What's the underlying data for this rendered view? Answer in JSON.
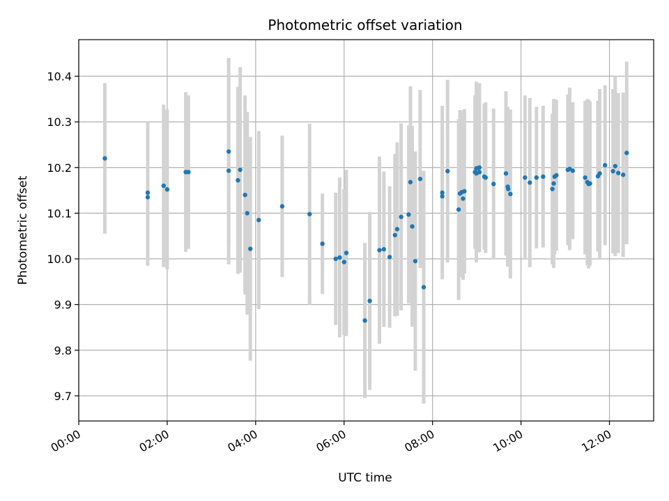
{
  "chart_data": {
    "type": "scatter",
    "title": "Photometric offset variation",
    "xlabel": "UTC time",
    "ylabel": "Photometric offset",
    "x_unit": "hours",
    "xlim": [
      0,
      13
    ],
    "ylim": [
      9.645,
      10.48
    ],
    "grid": true,
    "x_ticks": [
      {
        "value": 0,
        "label": "00:00"
      },
      {
        "value": 2,
        "label": "02:00"
      },
      {
        "value": 4,
        "label": "04:00"
      },
      {
        "value": 6,
        "label": "06:00"
      },
      {
        "value": 8,
        "label": "08:00"
      },
      {
        "value": 10,
        "label": "10:00"
      },
      {
        "value": 12,
        "label": "12:00"
      }
    ],
    "y_ticks": [
      {
        "value": 9.7,
        "label": "9.7"
      },
      {
        "value": 9.8,
        "label": "9.8"
      },
      {
        "value": 9.9,
        "label": "9.9"
      },
      {
        "value": 10.0,
        "label": "10.0"
      },
      {
        "value": 10.1,
        "label": "10.1"
      },
      {
        "value": 10.2,
        "label": "10.2"
      },
      {
        "value": 10.3,
        "label": "10.3"
      },
      {
        "value": 10.4,
        "label": "10.4"
      }
    ],
    "point_color": "#1f77b4",
    "errorbar_color": "#d3d3d3",
    "series": [
      {
        "x": [
          0.59,
          1.56,
          1.56,
          1.92,
          2.0,
          2.42,
          2.48,
          3.39,
          3.39,
          3.6,
          3.65,
          3.76,
          3.81,
          3.88,
          4.07,
          4.6,
          5.22,
          5.51,
          5.81,
          5.9,
          6.0,
          6.05,
          6.47,
          6.58,
          6.8,
          6.9,
          7.03,
          7.15,
          7.2,
          7.29,
          7.46,
          7.5,
          7.54,
          7.61,
          7.72,
          7.8,
          8.22,
          8.22,
          8.34,
          8.59,
          8.62,
          8.66,
          8.69,
          8.72,
          8.96,
          8.99,
          8.99,
          9.03,
          9.06,
          9.06,
          9.17,
          9.2,
          9.38,
          9.66,
          9.7,
          9.71,
          9.76,
          10.09,
          10.2,
          10.35,
          10.5,
          10.71,
          10.74,
          10.76,
          10.8,
          11.06,
          11.1,
          11.17,
          11.45,
          11.5,
          11.53,
          11.56,
          11.74,
          11.78,
          11.9,
          12.08,
          12.13,
          12.2,
          12.31,
          12.39
        ],
        "y": [
          10.22,
          10.145,
          10.135,
          10.16,
          10.152,
          10.19,
          10.19,
          10.235,
          10.193,
          10.172,
          10.195,
          10.14,
          10.1,
          10.022,
          10.085,
          10.115,
          10.098,
          10.033,
          10.0,
          10.003,
          9.993,
          10.013,
          9.865,
          9.908,
          10.019,
          10.021,
          10.004,
          10.052,
          10.065,
          10.092,
          10.097,
          10.168,
          10.071,
          9.995,
          10.175,
          9.938,
          10.145,
          10.137,
          10.192,
          10.108,
          10.143,
          10.146,
          10.132,
          10.148,
          10.19,
          10.198,
          10.187,
          10.199,
          10.19,
          10.2,
          10.18,
          10.178,
          10.164,
          10.187,
          10.158,
          10.153,
          10.142,
          10.178,
          10.167,
          10.178,
          10.18,
          10.153,
          10.165,
          10.18,
          10.183,
          10.195,
          10.197,
          10.193,
          10.178,
          10.168,
          10.164,
          10.165,
          10.181,
          10.187,
          10.205,
          10.192,
          10.203,
          10.188,
          10.184,
          10.232
        ],
        "yerr": [
          0.165,
          0.155,
          0.15,
          0.178,
          0.175,
          0.175,
          0.168,
          0.205,
          0.205,
          0.205,
          0.225,
          0.218,
          0.222,
          0.245,
          0.195,
          0.155,
          0.198,
          0.11,
          0.145,
          0.175,
          0.16,
          0.182,
          0.17,
          0.195,
          0.205,
          0.17,
          0.155,
          0.178,
          0.19,
          0.205,
          0.195,
          0.21,
          0.22,
          0.24,
          0.195,
          0.255,
          0.19,
          0.148,
          0.2,
          0.198,
          0.183,
          0.178,
          0.178,
          0.18,
          0.168,
          0.19,
          0.195,
          0.185,
          0.17,
          0.185,
          0.16,
          0.165,
          0.165,
          0.18,
          0.175,
          0.165,
          0.185,
          0.18,
          0.185,
          0.155,
          0.155,
          0.165,
          0.185,
          0.17,
          0.165,
          0.165,
          0.178,
          0.15,
          0.168,
          0.182,
          0.185,
          0.18,
          0.165,
          0.185,
          0.175,
          0.18,
          0.197,
          0.175,
          0.18,
          0.2
        ]
      }
    ]
  }
}
